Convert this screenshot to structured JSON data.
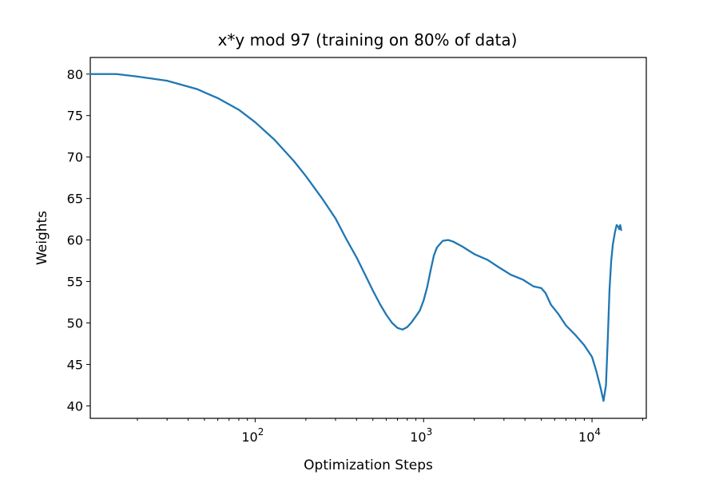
{
  "chart_data": {
    "type": "line",
    "title": "x*y mod 97 (training on 80% of data)",
    "xlabel": "Optimization Steps",
    "ylabel": "Weights",
    "xscale": "log",
    "xlim": [
      10.5,
      21000
    ],
    "ylim": [
      38.5,
      82
    ],
    "grid": false,
    "legend": "none",
    "colors": {
      "series": "#1f77b4",
      "axes": "#000000"
    },
    "x_ticks": [
      {
        "value": 100,
        "base": "10",
        "exp": "2"
      },
      {
        "value": 1000,
        "base": "10",
        "exp": "3"
      },
      {
        "value": 10000,
        "base": "10",
        "exp": "4"
      }
    ],
    "y_ticks": [
      {
        "value": 40,
        "label": "40"
      },
      {
        "value": 45,
        "label": "45"
      },
      {
        "value": 50,
        "label": "50"
      },
      {
        "value": 55,
        "label": "55"
      },
      {
        "value": 60,
        "label": "60"
      },
      {
        "value": 65,
        "label": "65"
      },
      {
        "value": 70,
        "label": "70"
      },
      {
        "value": 75,
        "label": "75"
      },
      {
        "value": 80,
        "label": "80"
      }
    ],
    "series": [
      {
        "x": [
          10.5,
          15,
          20,
          30,
          45,
          60,
          80,
          100,
          130,
          170,
          200,
          250,
          300,
          350,
          400,
          450,
          500,
          550,
          600,
          650,
          700,
          750,
          800,
          850,
          900,
          950,
          1000,
          1050,
          1100,
          1150,
          1200,
          1300,
          1400,
          1500,
          1700,
          2000,
          2400,
          2800,
          3300,
          3900,
          4500,
          5000,
          5300,
          5700,
          6300,
          7000,
          8000,
          9000,
          10000,
          10600,
          11200,
          11700,
          12100,
          12400,
          12700,
          13000,
          13300,
          13700,
          14000,
          14300,
          14500,
          14700,
          14900
        ],
        "y": [
          80.0,
          80.0,
          79.7,
          79.2,
          78.2,
          77.1,
          75.7,
          74.2,
          72.1,
          69.5,
          67.7,
          65.0,
          62.6,
          60.0,
          57.9,
          55.8,
          53.9,
          52.3,
          51.0,
          50.0,
          49.4,
          49.2,
          49.5,
          50.1,
          50.8,
          51.5,
          52.7,
          54.3,
          56.3,
          58.1,
          59.1,
          59.9,
          60.0,
          59.8,
          59.2,
          58.3,
          57.6,
          56.7,
          55.8,
          55.2,
          54.4,
          54.2,
          53.6,
          52.2,
          51.1,
          49.7,
          48.5,
          47.3,
          45.9,
          44.2,
          42.3,
          40.6,
          42.5,
          48.0,
          54.0,
          57.5,
          59.5,
          61.0,
          61.8,
          61.6,
          61.3,
          61.8,
          61.2
        ]
      }
    ]
  }
}
